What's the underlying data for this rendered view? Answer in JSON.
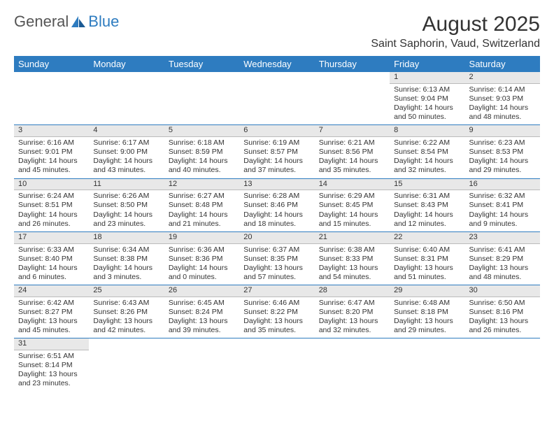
{
  "logo": {
    "part1": "General",
    "part2": "Blue"
  },
  "title": "August 2025",
  "location": "Saint Saphorin, Vaud, Switzerland",
  "colors": {
    "header_bg": "#2e7cc0",
    "daynum_bg": "#e8e8e8",
    "text": "#333333",
    "rule": "#2e7cc0"
  },
  "dayHeaders": [
    "Sunday",
    "Monday",
    "Tuesday",
    "Wednesday",
    "Thursday",
    "Friday",
    "Saturday"
  ],
  "weeks": [
    [
      null,
      null,
      null,
      null,
      null,
      {
        "n": "1",
        "sr": "Sunrise: 6:13 AM",
        "ss": "Sunset: 9:04 PM",
        "dl": "Daylight: 14 hours and 50 minutes."
      },
      {
        "n": "2",
        "sr": "Sunrise: 6:14 AM",
        "ss": "Sunset: 9:03 PM",
        "dl": "Daylight: 14 hours and 48 minutes."
      }
    ],
    [
      {
        "n": "3",
        "sr": "Sunrise: 6:16 AM",
        "ss": "Sunset: 9:01 PM",
        "dl": "Daylight: 14 hours and 45 minutes."
      },
      {
        "n": "4",
        "sr": "Sunrise: 6:17 AM",
        "ss": "Sunset: 9:00 PM",
        "dl": "Daylight: 14 hours and 43 minutes."
      },
      {
        "n": "5",
        "sr": "Sunrise: 6:18 AM",
        "ss": "Sunset: 8:59 PM",
        "dl": "Daylight: 14 hours and 40 minutes."
      },
      {
        "n": "6",
        "sr": "Sunrise: 6:19 AM",
        "ss": "Sunset: 8:57 PM",
        "dl": "Daylight: 14 hours and 37 minutes."
      },
      {
        "n": "7",
        "sr": "Sunrise: 6:21 AM",
        "ss": "Sunset: 8:56 PM",
        "dl": "Daylight: 14 hours and 35 minutes."
      },
      {
        "n": "8",
        "sr": "Sunrise: 6:22 AM",
        "ss": "Sunset: 8:54 PM",
        "dl": "Daylight: 14 hours and 32 minutes."
      },
      {
        "n": "9",
        "sr": "Sunrise: 6:23 AM",
        "ss": "Sunset: 8:53 PM",
        "dl": "Daylight: 14 hours and 29 minutes."
      }
    ],
    [
      {
        "n": "10",
        "sr": "Sunrise: 6:24 AM",
        "ss": "Sunset: 8:51 PM",
        "dl": "Daylight: 14 hours and 26 minutes."
      },
      {
        "n": "11",
        "sr": "Sunrise: 6:26 AM",
        "ss": "Sunset: 8:50 PM",
        "dl": "Daylight: 14 hours and 23 minutes."
      },
      {
        "n": "12",
        "sr": "Sunrise: 6:27 AM",
        "ss": "Sunset: 8:48 PM",
        "dl": "Daylight: 14 hours and 21 minutes."
      },
      {
        "n": "13",
        "sr": "Sunrise: 6:28 AM",
        "ss": "Sunset: 8:46 PM",
        "dl": "Daylight: 14 hours and 18 minutes."
      },
      {
        "n": "14",
        "sr": "Sunrise: 6:29 AM",
        "ss": "Sunset: 8:45 PM",
        "dl": "Daylight: 14 hours and 15 minutes."
      },
      {
        "n": "15",
        "sr": "Sunrise: 6:31 AM",
        "ss": "Sunset: 8:43 PM",
        "dl": "Daylight: 14 hours and 12 minutes."
      },
      {
        "n": "16",
        "sr": "Sunrise: 6:32 AM",
        "ss": "Sunset: 8:41 PM",
        "dl": "Daylight: 14 hours and 9 minutes."
      }
    ],
    [
      {
        "n": "17",
        "sr": "Sunrise: 6:33 AM",
        "ss": "Sunset: 8:40 PM",
        "dl": "Daylight: 14 hours and 6 minutes."
      },
      {
        "n": "18",
        "sr": "Sunrise: 6:34 AM",
        "ss": "Sunset: 8:38 PM",
        "dl": "Daylight: 14 hours and 3 minutes."
      },
      {
        "n": "19",
        "sr": "Sunrise: 6:36 AM",
        "ss": "Sunset: 8:36 PM",
        "dl": "Daylight: 14 hours and 0 minutes."
      },
      {
        "n": "20",
        "sr": "Sunrise: 6:37 AM",
        "ss": "Sunset: 8:35 PM",
        "dl": "Daylight: 13 hours and 57 minutes."
      },
      {
        "n": "21",
        "sr": "Sunrise: 6:38 AM",
        "ss": "Sunset: 8:33 PM",
        "dl": "Daylight: 13 hours and 54 minutes."
      },
      {
        "n": "22",
        "sr": "Sunrise: 6:40 AM",
        "ss": "Sunset: 8:31 PM",
        "dl": "Daylight: 13 hours and 51 minutes."
      },
      {
        "n": "23",
        "sr": "Sunrise: 6:41 AM",
        "ss": "Sunset: 8:29 PM",
        "dl": "Daylight: 13 hours and 48 minutes."
      }
    ],
    [
      {
        "n": "24",
        "sr": "Sunrise: 6:42 AM",
        "ss": "Sunset: 8:27 PM",
        "dl": "Daylight: 13 hours and 45 minutes."
      },
      {
        "n": "25",
        "sr": "Sunrise: 6:43 AM",
        "ss": "Sunset: 8:26 PM",
        "dl": "Daylight: 13 hours and 42 minutes."
      },
      {
        "n": "26",
        "sr": "Sunrise: 6:45 AM",
        "ss": "Sunset: 8:24 PM",
        "dl": "Daylight: 13 hours and 39 minutes."
      },
      {
        "n": "27",
        "sr": "Sunrise: 6:46 AM",
        "ss": "Sunset: 8:22 PM",
        "dl": "Daylight: 13 hours and 35 minutes."
      },
      {
        "n": "28",
        "sr": "Sunrise: 6:47 AM",
        "ss": "Sunset: 8:20 PM",
        "dl": "Daylight: 13 hours and 32 minutes."
      },
      {
        "n": "29",
        "sr": "Sunrise: 6:48 AM",
        "ss": "Sunset: 8:18 PM",
        "dl": "Daylight: 13 hours and 29 minutes."
      },
      {
        "n": "30",
        "sr": "Sunrise: 6:50 AM",
        "ss": "Sunset: 8:16 PM",
        "dl": "Daylight: 13 hours and 26 minutes."
      }
    ],
    [
      {
        "n": "31",
        "sr": "Sunrise: 6:51 AM",
        "ss": "Sunset: 8:14 PM",
        "dl": "Daylight: 13 hours and 23 minutes."
      },
      null,
      null,
      null,
      null,
      null,
      null
    ]
  ]
}
